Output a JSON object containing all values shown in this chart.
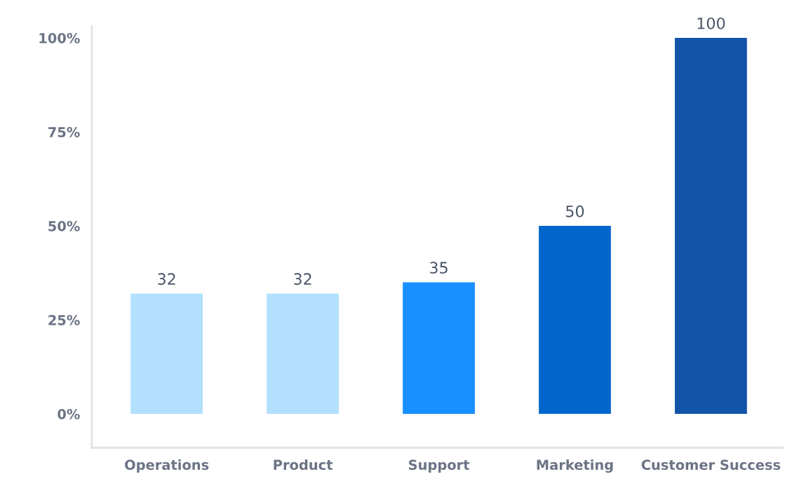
{
  "chart_data": {
    "type": "bar",
    "categories": [
      "Operations",
      "Product",
      "Support",
      "Marketing",
      "Customer Success"
    ],
    "values": [
      32,
      32,
      35,
      50,
      100
    ],
    "colors": [
      "#b3e0fd",
      "#b3e0fd",
      "#1890ff",
      "#0066cc",
      "#1254a8"
    ],
    "data_labels": true,
    "ylim": [
      -9,
      103
    ],
    "yticks": [
      {
        "value": 0,
        "label": "0%"
      },
      {
        "value": 25,
        "label": "25%"
      },
      {
        "value": 50,
        "label": "50%"
      },
      {
        "value": 75,
        "label": "75%"
      },
      {
        "value": 100,
        "label": "100%"
      }
    ],
    "grid": false,
    "legend": false
  }
}
